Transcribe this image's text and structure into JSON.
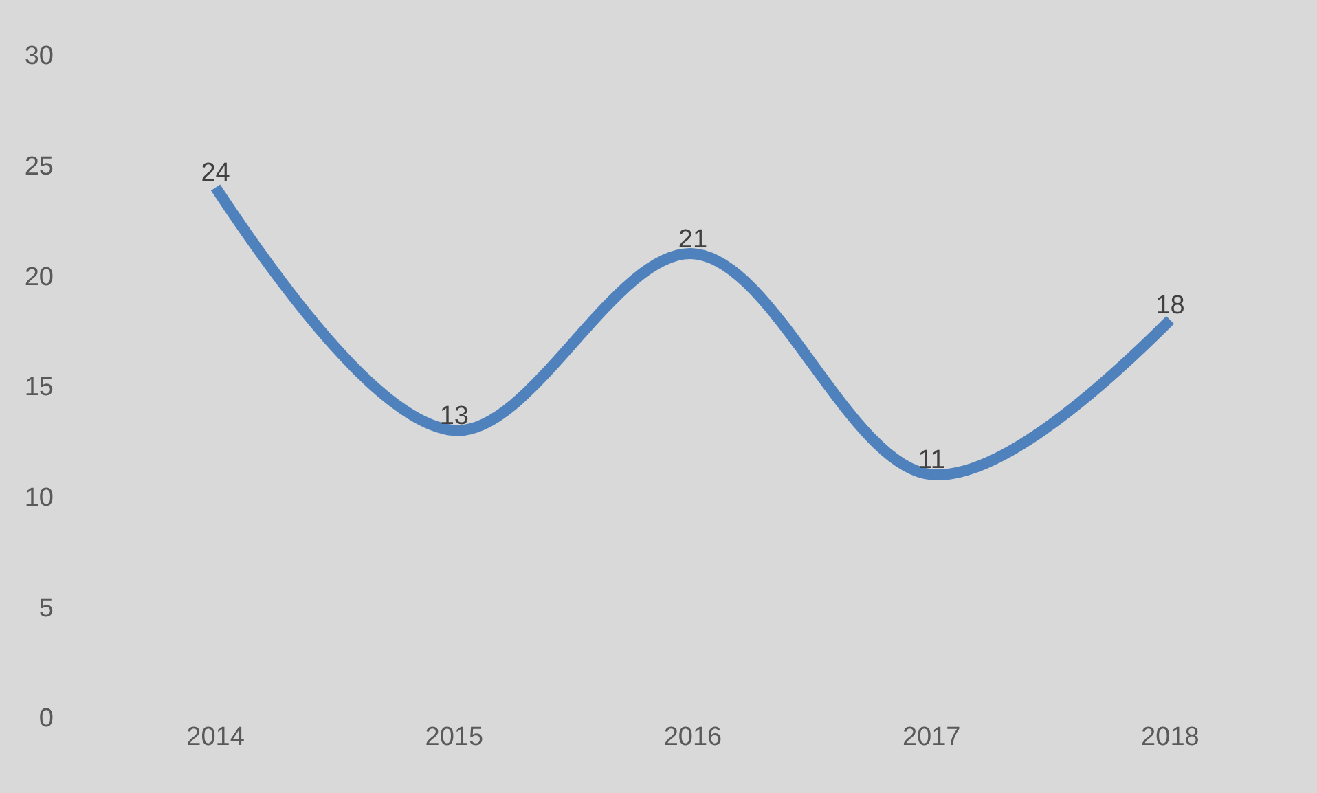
{
  "chart_data": {
    "type": "line",
    "categories": [
      "2014",
      "2015",
      "2016",
      "2017",
      "2018"
    ],
    "series": [
      {
        "color": "#4f81bd",
        "values": [
          24,
          13,
          21,
          11,
          18
        ]
      }
    ],
    "ylim": [
      0,
      30
    ],
    "yticks": [
      0,
      5,
      10,
      15,
      20,
      25,
      30
    ],
    "grid": false,
    "legend": false,
    "data_labels": true,
    "marker": "none",
    "line_style": "solid"
  }
}
